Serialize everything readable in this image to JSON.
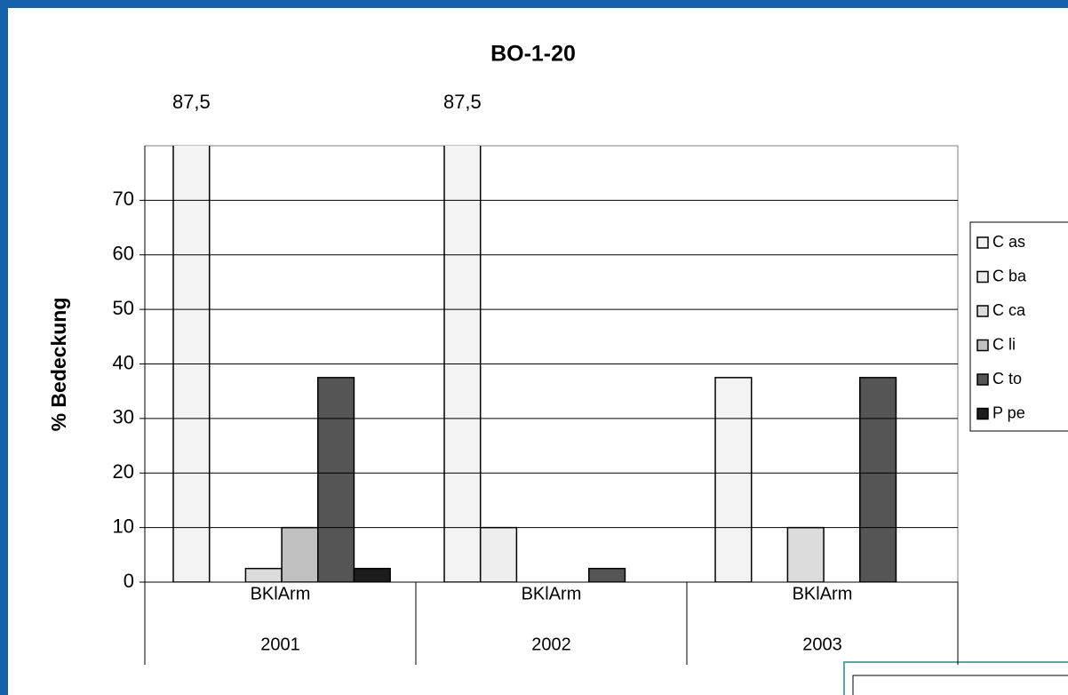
{
  "chart_data": {
    "type": "bar",
    "title": "BO-1-20",
    "y_label": "% Bedeckung",
    "categories": [
      "BKlArm",
      "BKlArm",
      "BKlArm"
    ],
    "category_groups": [
      "2001",
      "2002",
      "2003"
    ],
    "series": [
      {
        "name": "C as",
        "color": "#f3f3f3",
        "values": [
          87.5,
          87.5,
          37.5
        ],
        "value_labels": [
          "87,5",
          "87,5",
          null
        ]
      },
      {
        "name": "C ba",
        "color": "#eeeeee",
        "values": [
          null,
          10,
          null
        ]
      },
      {
        "name": "C ca",
        "color": "#dcdcdc",
        "values": [
          2.5,
          null,
          10
        ]
      },
      {
        "name": "C li",
        "color": "#c0c0c0",
        "values": [
          10,
          null,
          null
        ]
      },
      {
        "name": "C to",
        "color": "#555555",
        "values": [
          37.5,
          2.5,
          37.5
        ]
      },
      {
        "name": "P pe",
        "color": "#1c1c1c",
        "values": [
          2.5,
          null,
          null
        ]
      }
    ],
    "ylim": [
      0,
      80
    ],
    "yticks": [
      0,
      10,
      20,
      30,
      40,
      50,
      60,
      70
    ],
    "grid": true
  }
}
